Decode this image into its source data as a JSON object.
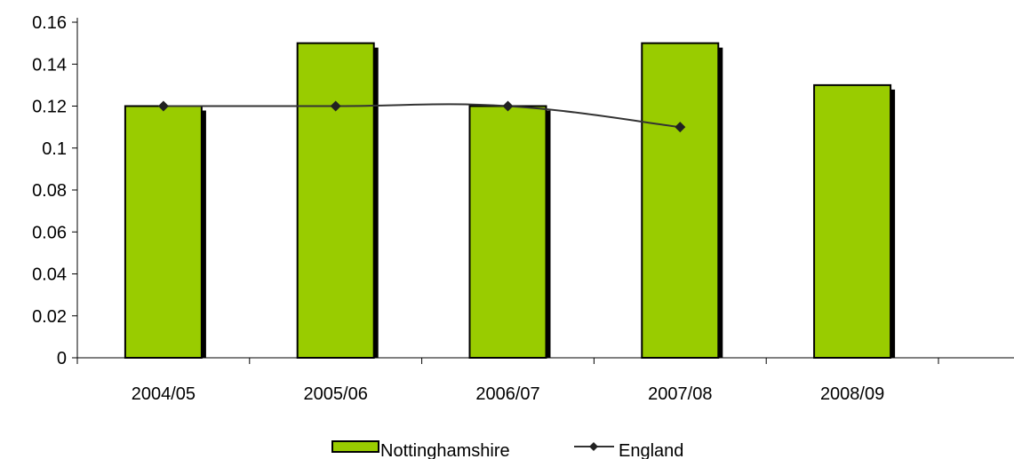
{
  "chart_data": {
    "type": "bar",
    "title": "",
    "xlabel": "",
    "ylabel": "",
    "categories": [
      "2004/05",
      "2005/06",
      "2006/07",
      "2007/08",
      "2008/09"
    ],
    "ylim": [
      0,
      0.16
    ],
    "yticks": [
      0,
      0.02,
      0.04,
      0.06,
      0.08,
      0.1,
      0.12,
      0.14,
      0.16
    ],
    "ytick_labels": [
      "0",
      "0.02",
      "0.04",
      "0.06",
      "0.08",
      "0.1",
      "0.12",
      "0.14",
      "0.16"
    ],
    "grid": false,
    "legend_position": "bottom",
    "series": [
      {
        "name": "Nottinghamshire",
        "type": "bar",
        "color": "#99cc00",
        "values": [
          0.12,
          0.15,
          0.12,
          0.15,
          0.13
        ]
      },
      {
        "name": "England",
        "type": "line",
        "color": "#333333",
        "marker": "diamond",
        "values": [
          0.12,
          0.12,
          0.12,
          0.11,
          null
        ]
      }
    ]
  }
}
